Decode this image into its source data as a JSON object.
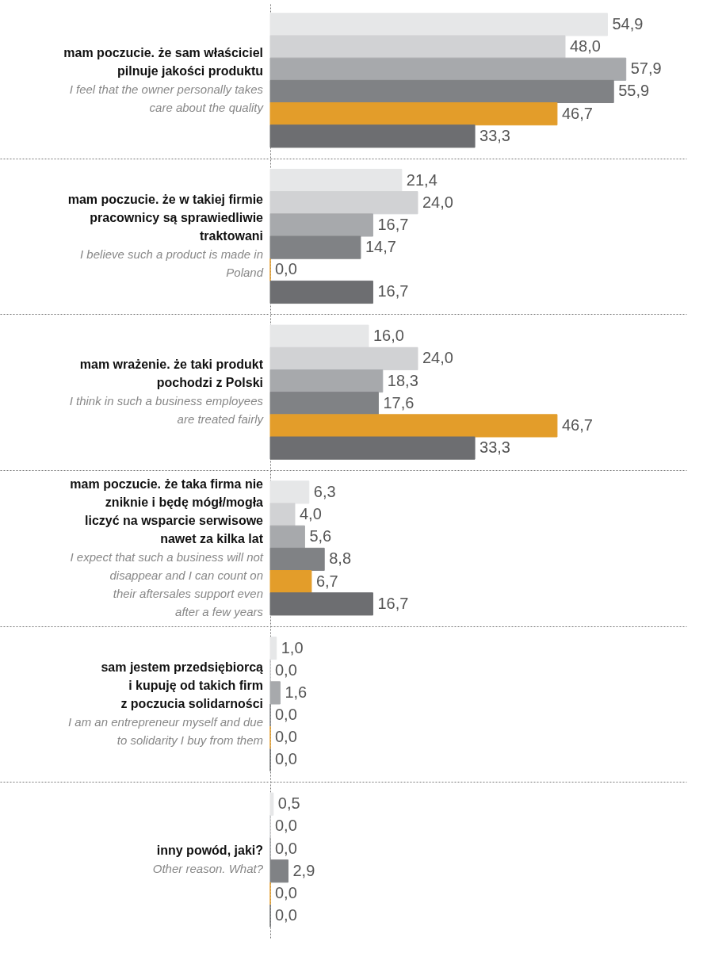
{
  "chart_data": {
    "type": "bar",
    "orientation": "horizontal",
    "grid": "y",
    "categories": [
      "mam poczucie. że sam właściciel\npilnuje jakości produktu",
      "mam poczucie. że w takiej firmie\npracownicy są sprawiedliwie\ntraktowani",
      "mam wrażenie. że taki produkt\npochodzi z Polski",
      "mam poczucie. że taka firma nie\nzniknie i będę mógł/mogła\nliczyć na wsparcie serwisowe\nnawet za kilka lat",
      "sam jestem przedsiębiorcą\ni kupuję od takich firm\nz poczucia solidarności",
      "inny powód, jaki?"
    ],
    "annotations": [
      "I feel that the owner personally takes\ncare about the quality",
      "I believe such a product is made in\nPoland",
      "I think in such a business employees\nare treated fairly",
      "I expect that such a business will not\ndisappear and I can count on\ntheir aftersales support even\nafter a few years",
      "I am an entrepreneur myself and due\nto solidarity I buy from them",
      "Other reason. What?"
    ],
    "series": [
      {
        "color": "#e6e7e8",
        "values": [
          54.9,
          21.4,
          16.0,
          6.3,
          1.0,
          0.5
        ],
        "value_labels": [
          "54,9",
          "21,4",
          "16,0",
          "6,3",
          "1,0",
          "0,5"
        ]
      },
      {
        "color": "#d1d2d4",
        "values": [
          48.0,
          24.0,
          24.0,
          4.0,
          0.0,
          0.0
        ],
        "value_labels": [
          "48,0",
          "24,0",
          "24,0",
          "4,0",
          "0,0",
          "0,0"
        ]
      },
      {
        "color": "#a7a9ac",
        "values": [
          57.9,
          16.7,
          18.3,
          5.6,
          1.6,
          0.0
        ],
        "value_labels": [
          "57,9",
          "16,7",
          "18,3",
          "5,6",
          "1,6",
          "0,0"
        ]
      },
      {
        "color": "#808285",
        "values": [
          55.9,
          14.7,
          17.6,
          8.8,
          0.0,
          2.9
        ],
        "value_labels": [
          "55,9",
          "14,7",
          "17,6",
          "8,8",
          "0,0",
          "2,9"
        ]
      },
      {
        "color": "#e39d2a",
        "values": [
          46.7,
          0.0,
          46.7,
          6.7,
          0.0,
          0.0
        ],
        "value_labels": [
          "46,7",
          "0,0",
          "46,7",
          "6,7",
          "0,0",
          "0,0"
        ]
      },
      {
        "color": "#6d6e71",
        "values": [
          33.3,
          16.7,
          33.3,
          16.7,
          0.0,
          0.0
        ],
        "value_labels": [
          "33,3",
          "16,7",
          "33,3",
          "16,7",
          "0,0",
          "0,0"
        ]
      }
    ]
  }
}
